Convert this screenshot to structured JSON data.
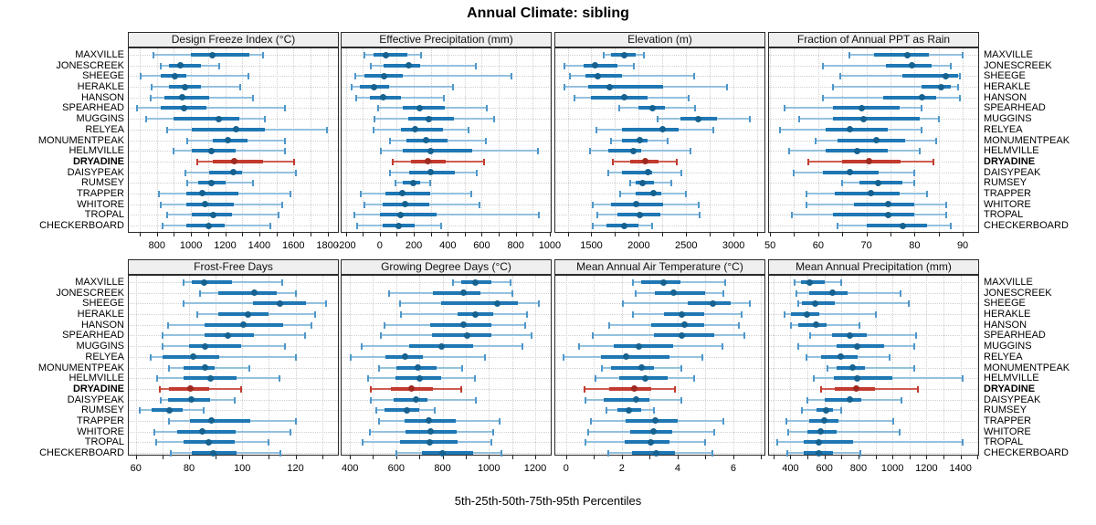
{
  "title": "Annual Climate: sibling",
  "xlabel": "5th-25th-50th-75th-95th Percentiles",
  "colors": {
    "blue": "#1f77b4",
    "blue_dot": "#15618f",
    "blue_whisker": "#94c1de",
    "blue_cap": "#4e97ca",
    "red": "#c23b2e",
    "red_dot": "#9e2a1f",
    "red_whisker": "#cd5c50",
    "red_cap": "#c23b2e",
    "strip_bg": "#efefef",
    "grid": "#cfcfcf",
    "border": "#2b2b2b"
  },
  "chart_data": {
    "type": "interval",
    "percentiles": [
      5,
      25,
      50,
      75,
      95
    ],
    "stations": [
      "MAXVILLE",
      "JONESCREEK",
      "SHEEGE",
      "HERAKLE",
      "HANSON",
      "SPEARHEAD",
      "MUGGINS",
      "RELYEA",
      "MONUMENTPEAK",
      "HELMVILLE",
      "DRYADINE",
      "DAISYPEAK",
      "RUMSEY",
      "TRAPPER",
      "WHITORE",
      "TROPAL",
      "CHECKERBOARD"
    ],
    "highlight_station": "DRYADINE",
    "panels": [
      {
        "title": "Design Freeze Index (°C)",
        "row": 0,
        "col": 0,
        "domain": [
          630,
          1866
        ],
        "ticks": [
          800,
          1000,
          1200,
          1400,
          1600,
          1800
        ],
        "series": [
          [
            780,
            1000,
            1125,
            1340,
            1420
          ],
          [
            820,
            870,
            940,
            1060,
            1165
          ],
          [
            705,
            820,
            905,
            970,
            1335
          ],
          [
            770,
            870,
            965,
            1060,
            1290
          ],
          [
            765,
            845,
            950,
            1105,
            1365
          ],
          [
            685,
            820,
            960,
            1090,
            1550
          ],
          [
            735,
            900,
            1160,
            1285,
            1435
          ],
          [
            860,
            1005,
            1265,
            1435,
            1795
          ],
          [
            980,
            1130,
            1215,
            1330,
            1550
          ],
          [
            900,
            1005,
            1120,
            1260,
            1550
          ],
          [
            1035,
            1130,
            1255,
            1420,
            1605
          ],
          [
            965,
            1105,
            1250,
            1300,
            1615
          ],
          [
            980,
            1040,
            1120,
            1200,
            1365
          ],
          [
            810,
            970,
            1065,
            1275,
            1580
          ],
          [
            825,
            970,
            1080,
            1250,
            1535
          ],
          [
            860,
            1005,
            1130,
            1240,
            1515
          ],
          [
            835,
            970,
            1105,
            1195,
            1465
          ]
        ]
      },
      {
        "title": "Effective Precipitation (mm)",
        "row": 0,
        "col": 1,
        "domain": [
          -230,
          1011
        ],
        "ticks": [
          -200,
          0,
          200,
          400,
          600,
          800,
          1000
        ],
        "series": [
          [
            -90,
            -35,
            35,
            160,
            245
          ],
          [
            -55,
            20,
            170,
            235,
            565
          ],
          [
            -145,
            -90,
            25,
            135,
            775
          ],
          [
            -165,
            -115,
            -35,
            55,
            430
          ],
          [
            -140,
            -60,
            20,
            125,
            375
          ],
          [
            -10,
            135,
            235,
            385,
            630
          ],
          [
            -30,
            165,
            290,
            435,
            670
          ],
          [
            -35,
            125,
            210,
            370,
            520
          ],
          [
            60,
            155,
            270,
            400,
            625
          ],
          [
            5,
            135,
            300,
            545,
            930
          ],
          [
            75,
            185,
            285,
            390,
            615
          ],
          [
            60,
            175,
            300,
            440,
            570
          ],
          [
            90,
            135,
            195,
            240,
            295
          ],
          [
            -110,
            35,
            130,
            295,
            540
          ],
          [
            -90,
            15,
            150,
            290,
            585
          ],
          [
            -150,
            0,
            120,
            335,
            935
          ],
          [
            -135,
            15,
            110,
            205,
            360
          ]
        ]
      },
      {
        "title": "Elevation (m)",
        "row": 0,
        "col": 2,
        "domain": [
          1110,
          3336
        ],
        "ticks": [
          1500,
          2000,
          2500,
          3000
        ],
        "series": [
          [
            1630,
            1710,
            1845,
            1965,
            2050
          ],
          [
            1215,
            1420,
            1540,
            1775,
            1950
          ],
          [
            1270,
            1435,
            1570,
            1825,
            2580
          ],
          [
            1215,
            1470,
            1690,
            2260,
            2935
          ],
          [
            1325,
            1500,
            1845,
            2095,
            2530
          ],
          [
            1795,
            2000,
            2145,
            2275,
            2595
          ],
          [
            2195,
            2435,
            2630,
            2825,
            3175
          ],
          [
            1550,
            1825,
            2250,
            2420,
            2790
          ],
          [
            1710,
            1825,
            2015,
            2095,
            2305
          ],
          [
            1485,
            1680,
            1940,
            2030,
            2550
          ],
          [
            1725,
            1905,
            2065,
            2210,
            2400
          ],
          [
            1680,
            1825,
            2100,
            2145,
            2450
          ],
          [
            1905,
            1970,
            2040,
            2160,
            2340
          ],
          [
            1805,
            1970,
            2160,
            2240,
            2500
          ],
          [
            1515,
            1710,
            1970,
            2260,
            2630
          ],
          [
            1565,
            1775,
            2015,
            2225,
            2645
          ],
          [
            1510,
            1660,
            1845,
            2000,
            2145
          ]
        ]
      },
      {
        "title": "Fraction of Annual PPT as Rain",
        "row": 0,
        "col": 3,
        "domain": [
          49.6,
          93.4
        ],
        "ticks": [
          50,
          60,
          70,
          80,
          90
        ],
        "series": [
          [
            66.5,
            71.5,
            78.5,
            83,
            90
          ],
          [
            61,
            74,
            79.5,
            83.5,
            87.5
          ],
          [
            64.5,
            77.5,
            86.5,
            89,
            89.5
          ],
          [
            63,
            81.5,
            85.5,
            87.5,
            89
          ],
          [
            61,
            73.5,
            81.5,
            84.5,
            89.5
          ],
          [
            53,
            63,
            69,
            77,
            81.5
          ],
          [
            56,
            63,
            69.5,
            81,
            85
          ],
          [
            52,
            61.5,
            66.5,
            74.5,
            81.5
          ],
          [
            59.5,
            64,
            72,
            78,
            84.5
          ],
          [
            54,
            61.5,
            68,
            74.5,
            81
          ],
          [
            58,
            65,
            70.5,
            77,
            84
          ],
          [
            55,
            61,
            66.5,
            72.5,
            80
          ],
          [
            65,
            68.5,
            72.5,
            77.5,
            80
          ],
          [
            57.5,
            63.5,
            71,
            77,
            82.5
          ],
          [
            57.5,
            67.5,
            74.5,
            80,
            86.5
          ],
          [
            54.5,
            63,
            74.5,
            80,
            86.5
          ],
          [
            64,
            70,
            77.5,
            82.5,
            87.5
          ]
        ]
      },
      {
        "title": "Frost-Free Days",
        "row": 1,
        "col": 0,
        "domain": [
          57,
          136.3
        ],
        "ticks": [
          60,
          80,
          100,
          120
        ],
        "series": [
          [
            78,
            81,
            85.5,
            96,
            115
          ],
          [
            84,
            91,
            104.5,
            113,
            120
          ],
          [
            78,
            104,
            114,
            124,
            131.5
          ],
          [
            83,
            91,
            102,
            110,
            127.5
          ],
          [
            72,
            86,
            100.5,
            115.5,
            126
          ],
          [
            70,
            86,
            94.5,
            104.5,
            123.5
          ],
          [
            70,
            80,
            86,
            99.5,
            116
          ],
          [
            65.5,
            70,
            81.5,
            91.5,
            120
          ],
          [
            72.5,
            78,
            86,
            89.5,
            102.5
          ],
          [
            68,
            78,
            88,
            98,
            114
          ],
          [
            69,
            72.5,
            80.5,
            87.5,
            99.5
          ],
          [
            69.5,
            72,
            81,
            88,
            97
          ],
          [
            61.5,
            66,
            72.5,
            77.5,
            85.5
          ],
          [
            72.5,
            80.5,
            88.5,
            103,
            120
          ],
          [
            67,
            75.5,
            85,
            97.5,
            118
          ],
          [
            67.5,
            78,
            87.5,
            97,
            110
          ],
          [
            73,
            81,
            89,
            98,
            114.5
          ]
        ]
      },
      {
        "title": "Growing Degree Days (°C)",
        "row": 1,
        "col": 1,
        "domain": [
          360,
          1271
        ],
        "ticks": [
          400,
          600,
          800,
          1000,
          1200
        ],
        "series": [
          [
            845,
            880,
            940,
            1010,
            1095
          ],
          [
            570,
            760,
            890,
            965,
            1100
          ],
          [
            615,
            795,
            1035,
            1125,
            1215
          ],
          [
            620,
            865,
            940,
            1020,
            1165
          ],
          [
            550,
            745,
            890,
            1010,
            1155
          ],
          [
            535,
            755,
            905,
            1010,
            1185
          ],
          [
            450,
            655,
            795,
            930,
            1145
          ],
          [
            405,
            555,
            640,
            715,
            985
          ],
          [
            525,
            600,
            695,
            775,
            885
          ],
          [
            480,
            595,
            700,
            795,
            940
          ],
          [
            490,
            575,
            665,
            760,
            880
          ],
          [
            490,
            590,
            685,
            735,
            945
          ],
          [
            515,
            550,
            645,
            700,
            765
          ],
          [
            525,
            635,
            740,
            855,
            1045
          ],
          [
            485,
            640,
            750,
            860,
            1020
          ],
          [
            455,
            615,
            745,
            865,
            1010
          ],
          [
            600,
            710,
            800,
            930,
            1055
          ]
        ]
      },
      {
        "title": "Mean Annual Air Temperature (°C)",
        "row": 1,
        "col": 2,
        "domain": [
          -0.42,
          7.15
        ],
        "ticks": [
          0,
          2,
          4,
          6
        ],
        "series": [
          [
            2.4,
            2.7,
            3.5,
            4.1,
            5.7
          ],
          [
            2.5,
            3.2,
            3.85,
            5.0,
            5.65
          ],
          [
            2.05,
            4.35,
            5.25,
            5.9,
            6.6
          ],
          [
            2.4,
            3.5,
            4.15,
            4.95,
            6.3
          ],
          [
            1.55,
            3.05,
            4.25,
            4.95,
            6.2
          ],
          [
            0.95,
            3.15,
            4.15,
            5.3,
            6.4
          ],
          [
            0.45,
            1.7,
            2.6,
            3.85,
            5.6
          ],
          [
            -0.1,
            1.25,
            2.15,
            3.7,
            4.9
          ],
          [
            1.3,
            1.6,
            2.7,
            3.15,
            4.15
          ],
          [
            1.05,
            1.9,
            2.85,
            3.65,
            4.6
          ],
          [
            0.65,
            1.55,
            2.45,
            3.05,
            3.9
          ],
          [
            0.7,
            1.35,
            2.5,
            3.0,
            4.15
          ],
          [
            1.45,
            1.85,
            2.25,
            2.7,
            3.15
          ],
          [
            0.9,
            2.15,
            3.2,
            4.0,
            5.65
          ],
          [
            0.8,
            2.3,
            3.15,
            3.8,
            5.3
          ],
          [
            0.7,
            2.1,
            3.05,
            3.7,
            5.0
          ],
          [
            1.5,
            2.35,
            3.25,
            3.9,
            5.25
          ]
        ]
      },
      {
        "title": "Mean Annual Precipitation (mm)",
        "row": 1,
        "col": 3,
        "domain": [
          269,
          1509
        ],
        "ticks": [
          400,
          600,
          800,
          1000,
          1200,
          1400
        ],
        "series": [
          [
            425,
            460,
            515,
            600,
            700
          ],
          [
            435,
            510,
            645,
            735,
            1050
          ],
          [
            445,
            465,
            545,
            660,
            1095
          ],
          [
            365,
            405,
            495,
            570,
            905
          ],
          [
            405,
            445,
            550,
            610,
            805
          ],
          [
            515,
            645,
            750,
            850,
            1140
          ],
          [
            445,
            670,
            795,
            950,
            1130
          ],
          [
            495,
            580,
            695,
            795,
            985
          ],
          [
            620,
            670,
            765,
            840,
            1130
          ],
          [
            535,
            655,
            790,
            1000,
            1410
          ],
          [
            580,
            660,
            785,
            895,
            1150
          ],
          [
            500,
            600,
            750,
            815,
            1055
          ],
          [
            470,
            555,
            610,
            650,
            700
          ],
          [
            375,
            510,
            600,
            680,
            1005
          ],
          [
            385,
            500,
            580,
            670,
            1040
          ],
          [
            320,
            480,
            565,
            770,
            1410
          ],
          [
            380,
            480,
            565,
            650,
            810
          ]
        ]
      }
    ]
  }
}
